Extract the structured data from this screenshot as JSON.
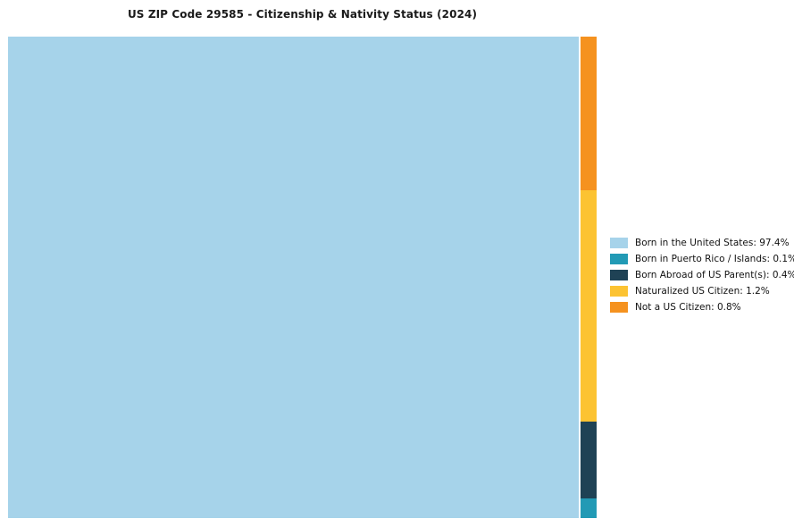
{
  "title": "US ZIP Code 29585 - Citizenship & Nativity Status (2024)",
  "chart_data": {
    "type": "treemap",
    "title": "US ZIP Code 29585 - Citizenship & Nativity Status (2024)",
    "categories": [
      "Born in the United States",
      "Born in Puerto Rico / Islands",
      "Born Abroad of US Parent(s)",
      "Naturalized US Citizen",
      "Not a US Citizen"
    ],
    "values": [
      97.4,
      0.1,
      0.4,
      1.2,
      0.8
    ],
    "colors": [
      "#a6d3ea",
      "#229ab5",
      "#1f4255",
      "#fcc332",
      "#f5921f"
    ],
    "legend_position": "right",
    "grid": false,
    "main_block": {
      "name": "Born in the United States",
      "value": 97.4,
      "color": "#a6d3ea"
    },
    "side_segments": [
      {
        "name": "Not a US Citizen",
        "value": 0.8,
        "color": "#f5921f"
      },
      {
        "name": "Naturalized US Citizen",
        "value": 1.2,
        "color": "#fcc332"
      },
      {
        "name": "Born Abroad of US Parent(s)",
        "value": 0.4,
        "color": "#1f4255"
      },
      {
        "name": "Born in Puerto Rico / Islands",
        "value": 0.1,
        "color": "#229ab5"
      }
    ],
    "legend": [
      {
        "label": "Born in the United States: 97.4%",
        "color": "#a6d3ea"
      },
      {
        "label": "Born in Puerto Rico / Islands: 0.1%",
        "color": "#229ab5"
      },
      {
        "label": "Born Abroad of US Parent(s): 0.4%",
        "color": "#1f4255"
      },
      {
        "label": "Naturalized US Citizen: 1.2%",
        "color": "#fcc332"
      },
      {
        "label": "Not a US Citizen: 0.8%",
        "color": "#f5921f"
      }
    ]
  }
}
